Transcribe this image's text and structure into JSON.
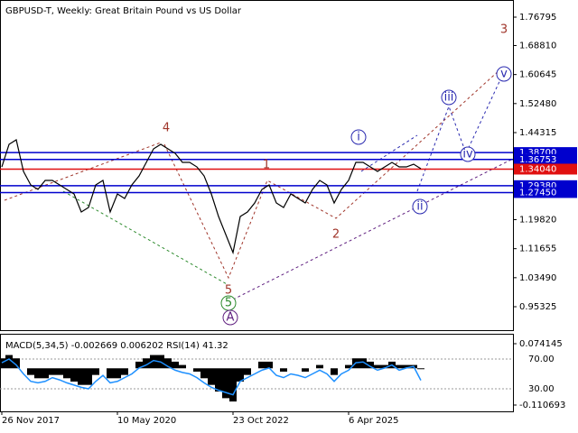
{
  "chart_data": [
    {
      "type": "line",
      "title": "GBPUSD-T, Weekly:  Great Britain Pound vs US Dollar",
      "categories": [
        "26 Nov 2017",
        null,
        null,
        null,
        null,
        null,
        null,
        null,
        null,
        null,
        null,
        null,
        null,
        null,
        null,
        null,
        "10 May 2020",
        null,
        null,
        null,
        null,
        null,
        null,
        null,
        null,
        null,
        null,
        null,
        null,
        null,
        null,
        null,
        "23 Oct 2022",
        null,
        null,
        null,
        null,
        null,
        null,
        null,
        null,
        null,
        null,
        null,
        null,
        null,
        null,
        null,
        "6 Apr 2025",
        null,
        null,
        null,
        null,
        null,
        null,
        null,
        null,
        null,
        null
      ],
      "series": [
        {
          "color": "#000000",
          "values": [
            1.3466,
            1.4101,
            1.4228,
            1.334,
            1.2959,
            1.2832,
            1.3086,
            1.3086,
            1.2959,
            1.2832,
            1.2705,
            1.2197,
            1.2324,
            1.2959,
            1.3086,
            1.2197,
            1.2705,
            1.2578,
            1.2959,
            1.3213,
            1.3593,
            1.3974,
            1.4101,
            1.3974,
            1.3847,
            1.3593,
            1.3593,
            1.3466,
            1.3213,
            1.2705,
            1.207,
            1.1563,
            1.1055,
            1.207,
            1.2197,
            1.2451,
            1.2832,
            1.2959,
            1.2451,
            1.2324,
            1.2705,
            1.2578,
            1.2451,
            1.2832,
            1.3086,
            1.2959,
            1.2451,
            1.2832,
            1.3086,
            1.3593,
            1.3593,
            1.3466,
            1.334,
            1.3466,
            1.3593,
            1.3466,
            1.3466,
            1.3542,
            1.3416
          ]
        }
      ],
      "ylim": [
        0.8873,
        1.8162
      ],
      "yticks": [
        {
          "value": 1.76795,
          "label": "1.76795"
        },
        {
          "value": 1.6881,
          "label": "1.68810"
        },
        {
          "value": 1.60645,
          "label": "1.60645"
        },
        {
          "value": 1.5248,
          "label": "1.52480"
        },
        {
          "value": 1.44315,
          "label": "1.44315"
        },
        {
          "value": 1.1982,
          "label": "1.19820"
        },
        {
          "value": 1.11655,
          "label": "1.11655"
        },
        {
          "value": 1.0349,
          "label": "1.03490"
        },
        {
          "value": 0.95325,
          "label": "0.95325"
        }
      ],
      "levels": [
        {
          "value": 1.387,
          "label": "1.38700",
          "color": "#0000cd"
        },
        {
          "value": 1.36753,
          "label": "1.36753",
          "color": "#0000cd"
        },
        {
          "value": 1.3404,
          "label": "1.34040",
          "color": "#e01010"
        },
        {
          "value": 1.2938,
          "label": "1.29380",
          "color": "#0000cd"
        },
        {
          "value": 1.2745,
          "label": "1.27450",
          "color": "#0000cd"
        }
      ],
      "annotations": [
        {
          "text": "4",
          "color": "#a0352a"
        },
        {
          "text": "1",
          "color": "#a0352a"
        },
        {
          "text": "2",
          "color": "#a0352a"
        },
        {
          "text": "3",
          "color": "#a0352a"
        },
        {
          "text": "5",
          "color": "#a0352a"
        },
        {
          "text": "5",
          "color": "#2e8b2e",
          "circled": true
        },
        {
          "text": "A",
          "color": "#602080",
          "circled": true
        },
        {
          "text": "i",
          "color": "#2a2ab0",
          "circled": true
        },
        {
          "text": "ii",
          "color": "#2a2ab0",
          "circled": true
        },
        {
          "text": "iii",
          "color": "#2a2ab0",
          "circled": true
        },
        {
          "text": "iv",
          "color": "#2a2ab0",
          "circled": true
        },
        {
          "text": "v",
          "color": "#2a2ab0",
          "circled": true
        }
      ]
    },
    {
      "type": "macd",
      "title": "MACD(5,34,5) -0.002669 0.006202 RSI(14) 41.32",
      "series": [
        {
          "color": "#000000",
          "values": [
            0.03,
            0.04,
            0.03,
            0.0,
            -0.02,
            -0.03,
            -0.03,
            -0.02,
            -0.02,
            -0.03,
            -0.04,
            -0.05,
            -0.05,
            -0.02,
            0.0,
            -0.03,
            -0.03,
            -0.02,
            0.0,
            0.02,
            0.03,
            0.04,
            0.04,
            0.03,
            0.02,
            0.01,
            0.0,
            -0.01,
            -0.03,
            -0.05,
            -0.07,
            -0.09,
            -0.1,
            -0.04,
            -0.02,
            0.0,
            0.02,
            0.02,
            0.0,
            -0.01,
            0.0,
            0.0,
            -0.01,
            0.0,
            0.01,
            0.0,
            -0.02,
            0.0,
            0.01,
            0.03,
            0.03,
            0.02,
            0.01,
            0.01,
            0.02,
            0.01,
            0.01,
            0.01,
            -0.002669
          ]
        },
        {
          "color": "#1e90ff",
          "axis": "y2",
          "values": [
            65,
            70,
            62,
            50,
            40,
            38,
            40,
            45,
            42,
            38,
            35,
            32,
            30,
            40,
            48,
            38,
            40,
            45,
            50,
            58,
            62,
            68,
            66,
            60,
            55,
            52,
            50,
            45,
            38,
            32,
            28,
            25,
            22,
            40,
            45,
            50,
            55,
            58,
            48,
            45,
            50,
            48,
            45,
            50,
            55,
            50,
            40,
            50,
            55,
            65,
            66,
            60,
            55,
            58,
            62,
            55,
            58,
            60,
            41.32
          ]
        }
      ],
      "ylim": [
        -0.1297,
        0.0986
      ],
      "yticks": [
        0.074145,
        -0.110693
      ],
      "y2lim": [
        -0.3,
        101.5
      ],
      "y2ticks": [
        {
          "value": 70,
          "label": "70.00"
        },
        {
          "value": 30,
          "label": "30.00"
        }
      ]
    }
  ]
}
